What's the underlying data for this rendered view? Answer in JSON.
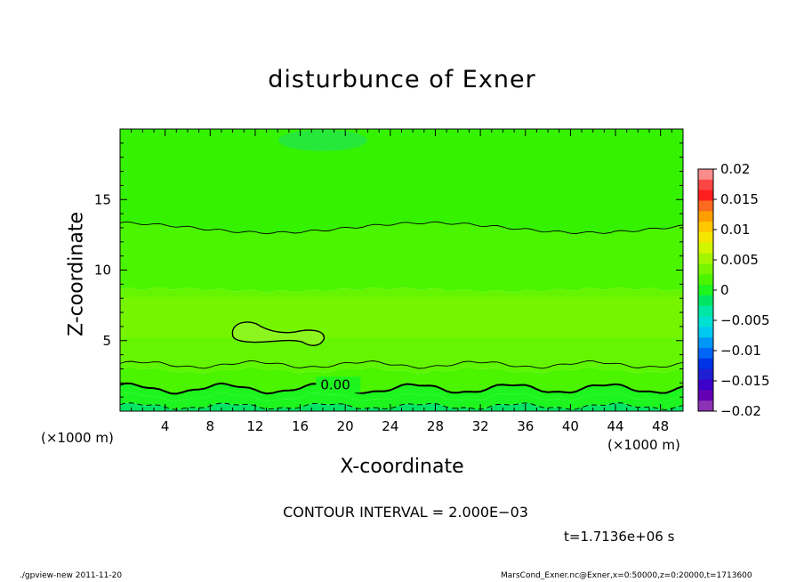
{
  "chart_data": {
    "type": "contour",
    "title": "disturbunce of Exner",
    "xlabel": "X-coordinate",
    "ylabel": "Z-coordinate",
    "x_unit": "(×1000 m)",
    "y_unit": "(×1000 m)",
    "xlim": [
      0,
      50
    ],
    "ylim": [
      0,
      20
    ],
    "x_ticks": [
      4,
      8,
      12,
      16,
      20,
      24,
      28,
      32,
      36,
      40,
      44,
      48
    ],
    "y_ticks": [
      5,
      10,
      15
    ],
    "colorbar": {
      "levels": [
        0.02,
        0.015,
        0.01,
        0.005,
        0,
        -0.005,
        -0.01,
        -0.015,
        -0.02
      ],
      "tick_labels": [
        "0.02",
        "0.015",
        "0.01",
        "0.005",
        "0",
        "−0.005",
        "−0.01",
        "−0.015",
        "−0.02"
      ],
      "band_colors": [
        "#fb8c8c",
        "#fb4646",
        "#ff1e1e",
        "#fb6a1e",
        "#ff9e00",
        "#ffc800",
        "#f5e600",
        "#d2f500",
        "#a5f500",
        "#78f500",
        "#4bf500",
        "#1ef51e",
        "#00e664",
        "#00e6a5",
        "#00e1d2",
        "#00c8f0",
        "#0096f5",
        "#0064f5",
        "#0032e6",
        "#1e1ed2",
        "#3c00c8",
        "#6400b4",
        "#8c32b4"
      ]
    },
    "contour_label": "0.00",
    "contour_interval_text": "CONTOUR INTERVAL = 2.000E−03",
    "time_text": "t=1.7136e+06 s"
  },
  "footer": {
    "left": "./gpview-new   2011-11-20",
    "right": "MarsCond_Exner.nc@Exner,x=0:50000,z=0:20000,t=1713600"
  }
}
